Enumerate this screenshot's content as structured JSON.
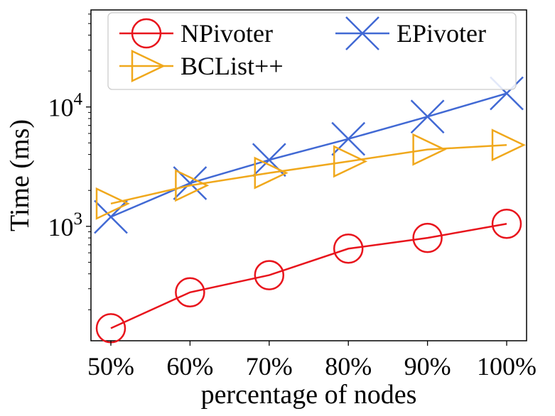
{
  "chart_data": {
    "type": "line",
    "title": "",
    "xlabel": "percentage of nodes",
    "ylabel": "Time (ms)",
    "categories": [
      "50%",
      "60%",
      "70%",
      "80%",
      "90%",
      "100%"
    ],
    "yscale": "log",
    "ylim": [
      110,
      65000
    ],
    "ytick_labels": [
      {
        "value": 1000,
        "base": "10",
        "exp": "3"
      },
      {
        "value": 10000,
        "base": "10",
        "exp": "4"
      }
    ],
    "grid": false,
    "legend_position": "top",
    "series": [
      {
        "name": "NPivoter",
        "color": "#e8141c",
        "marker": "circle",
        "values": [
          140,
          280,
          390,
          650,
          800,
          1050
        ]
      },
      {
        "name": "EPivoter",
        "color": "#4169d4",
        "marker": "x",
        "values": [
          1200,
          2300,
          3600,
          5400,
          8300,
          13000
        ]
      },
      {
        "name": "BCList++",
        "color": "#f0a81c",
        "marker": "triangle-right",
        "values": [
          1550,
          2200,
          2800,
          3500,
          4400,
          4800
        ]
      }
    ]
  }
}
